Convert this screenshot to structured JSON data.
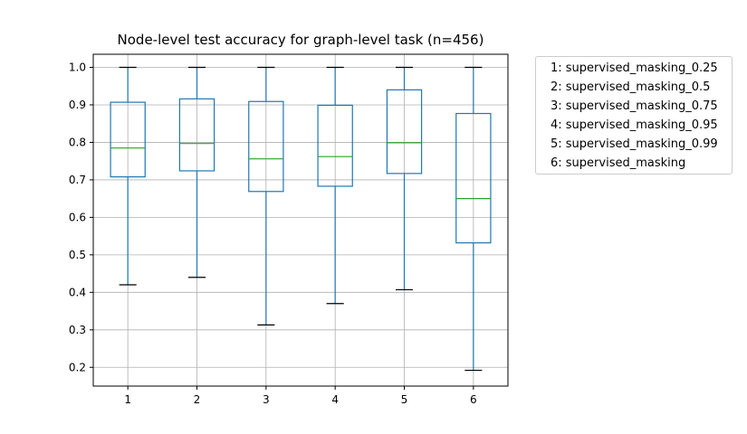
{
  "chart_data": {
    "type": "box",
    "title": "Node-level test accuracy for graph-level task (n=456)",
    "xlabel": "",
    "ylabel": "",
    "ylim": [
      0.15,
      1.035
    ],
    "yticks": [
      0.2,
      0.3,
      0.4,
      0.5,
      0.6,
      0.7,
      0.8,
      0.9,
      1.0
    ],
    "ytick_labels": [
      "0.2",
      "0.3",
      "0.4",
      "0.5",
      "0.6",
      "0.7",
      "0.8",
      "0.9",
      "1.0"
    ],
    "categories": [
      "1",
      "2",
      "3",
      "4",
      "5",
      "6"
    ],
    "grid": true,
    "legend_placement": "outside-upper-right",
    "legend": [
      "1: supervised_masking_0.25",
      "2: supervised_masking_0.5",
      "3: supervised_masking_0.75",
      "4: supervised_masking_0.95",
      "5: supervised_masking_0.99",
      "6: supervised_masking"
    ],
    "boxes": [
      {
        "category": "1",
        "whisker_low": 0.42,
        "q1": 0.708,
        "median": 0.785,
        "q3": 0.907,
        "whisker_high": 1.0
      },
      {
        "category": "2",
        "whisker_low": 0.44,
        "q1": 0.724,
        "median": 0.797,
        "q3": 0.916,
        "whisker_high": 1.0
      },
      {
        "category": "3",
        "whisker_low": 0.313,
        "q1": 0.669,
        "median": 0.756,
        "q3": 0.909,
        "whisker_high": 1.0
      },
      {
        "category": "4",
        "whisker_low": 0.37,
        "q1": 0.683,
        "median": 0.762,
        "q3": 0.899,
        "whisker_high": 1.0
      },
      {
        "category": "5",
        "whisker_low": 0.407,
        "q1": 0.717,
        "median": 0.799,
        "q3": 0.94,
        "whisker_high": 1.0
      },
      {
        "category": "6",
        "whisker_low": 0.192,
        "q1": 0.532,
        "median": 0.65,
        "q3": 0.877,
        "whisker_high": 1.0
      }
    ],
    "colors": {
      "box": "#1f77b4",
      "median": "#2ca02c",
      "cap": "#000000",
      "grid": "#b0b0b0"
    }
  }
}
